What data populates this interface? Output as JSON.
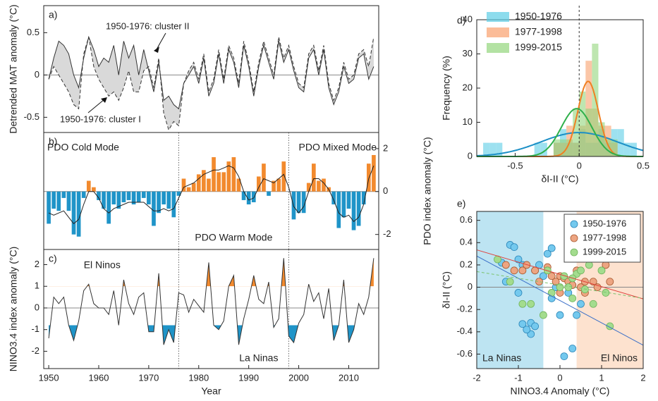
{
  "chart_data": [
    {
      "type": "line",
      "panel_label": "a)",
      "ylabel": "Detrended MAT anomaly (°C)",
      "annotations": [
        "1950-1976: cluster II",
        "1950-1976: cluster I"
      ],
      "x": [
        1950,
        1951,
        1952,
        1953,
        1954,
        1955,
        1956,
        1957,
        1958,
        1959,
        1960,
        1961,
        1962,
        1963,
        1964,
        1965,
        1966,
        1967,
        1968,
        1969,
        1970,
        1971,
        1972,
        1973,
        1974,
        1975,
        1976,
        1977,
        1978,
        1979,
        1980,
        1981,
        1982,
        1983,
        1984,
        1985,
        1986,
        1987,
        1988,
        1989,
        1990,
        1991,
        1992,
        1993,
        1994,
        1995,
        1996,
        1997,
        1998,
        1999,
        2000,
        2001,
        2002,
        2003,
        2004,
        2005,
        2006,
        2007,
        2008,
        2009,
        2010,
        2011,
        2012,
        2013,
        2014,
        2015
      ],
      "series": [
        {
          "color": "#333333",
          "dash": false,
          "values": [
            -0.05,
            0.2,
            0.4,
            0.35,
            0.25,
            0.0,
            -0.15,
            0.2,
            0.45,
            0.3,
            0.1,
            0.2,
            0.15,
            0.35,
            0.0,
            0.4,
            0.2,
            0.35,
            0.0,
            0.3,
            0.05,
            -0.2,
            0.15,
            -0.3,
            -0.25,
            -0.35,
            -0.4,
            -0.1,
            0.0,
            0.1,
            -0.1,
            0.2,
            -0.25,
            -0.1,
            0.25,
            -0.1,
            0.3,
            0.15,
            -0.15,
            0.35,
            0.1,
            -0.25,
            0.1,
            0.35,
            0.15,
            -0.05,
            0.4,
            0.15,
            0.3,
            0.05,
            -0.15,
            -0.2,
            0.2,
            0.3,
            0.0,
            0.3,
            -0.15,
            -0.35,
            -0.2,
            0.1,
            -0.1,
            -0.05,
            0.2,
            0.25,
            -0.05,
            0.1
          ]
        },
        {
          "color": "#333333",
          "dash": true,
          "values": [
            -0.05,
            0.1,
            0.0,
            -0.1,
            -0.2,
            -0.35,
            -0.4,
            0.25,
            0.45,
            0.1,
            -0.05,
            -0.15,
            -0.25,
            -0.2,
            -0.3,
            -0.15,
            0.05,
            -0.2,
            -0.2,
            0.05,
            0.1,
            -0.15,
            0.2,
            -0.45,
            -0.65,
            -0.55,
            -0.6,
            -0.1,
            0.05,
            0.15,
            -0.05,
            0.25,
            -0.2,
            -0.05,
            0.3,
            -0.05,
            0.35,
            0.2,
            -0.1,
            0.4,
            0.15,
            -0.2,
            0.15,
            0.4,
            0.2,
            0.0,
            0.45,
            0.2,
            0.35,
            0.1,
            -0.1,
            -0.15,
            0.25,
            0.35,
            0.05,
            0.35,
            -0.1,
            -0.3,
            -0.15,
            0.15,
            -0.05,
            0.0,
            0.25,
            0.3,
            0.1,
            0.45
          ]
        }
      ],
      "shade_between": "#d9d9d9",
      "xlim": [
        1949,
        2016
      ],
      "ylim": [
        -0.68,
        0.82
      ],
      "yticks": [
        -0.5,
        0,
        0.5
      ]
    },
    {
      "type": "bar",
      "panel_label": "b)",
      "ylabel": "PDO index anomaly (°C)",
      "y_axis_side": "right",
      "annotations": [
        {
          "text": "PDO Cold Mode",
          "color": "#1f94c8"
        },
        {
          "text": "PDO Mixed Mode",
          "color": "#2aa33c"
        },
        {
          "text": "PDO Warm Mode",
          "color": "#f28a2e"
        }
      ],
      "x": [
        1950,
        1951,
        1952,
        1953,
        1954,
        1955,
        1956,
        1957,
        1958,
        1959,
        1960,
        1961,
        1962,
        1963,
        1964,
        1965,
        1966,
        1967,
        1968,
        1969,
        1970,
        1971,
        1972,
        1973,
        1974,
        1975,
        1976,
        1977,
        1978,
        1979,
        1980,
        1981,
        1982,
        1983,
        1984,
        1985,
        1986,
        1987,
        1988,
        1989,
        1990,
        1991,
        1992,
        1993,
        1994,
        1995,
        1996,
        1997,
        1998,
        1999,
        2000,
        2001,
        2002,
        2003,
        2004,
        2005,
        2006,
        2007,
        2008,
        2009,
        2010,
        2011,
        2012,
        2013,
        2014,
        2015
      ],
      "values": [
        -1.5,
        -0.8,
        -0.9,
        -0.3,
        -0.9,
        -2.0,
        -2.1,
        -0.3,
        0.5,
        0.2,
        -0.4,
        -0.8,
        -1.5,
        -0.6,
        -0.8,
        -0.5,
        -0.4,
        -0.6,
        -0.5,
        -0.3,
        -0.6,
        -1.6,
        -1.0,
        -0.6,
        -0.8,
        -1.2,
        -0.2,
        0.6,
        0.2,
        0.4,
        0.8,
        1.0,
        0.6,
        1.6,
        0.9,
        0.9,
        1.4,
        1.6,
        0.6,
        -0.4,
        -0.6,
        -0.5,
        0.7,
        1.3,
        -0.2,
        0.5,
        0.6,
        1.4,
        0.0,
        -1.3,
        -1.0,
        -1.0,
        0.4,
        1.3,
        0.5,
        0.6,
        0.2,
        -0.6,
        -1.7,
        -1.2,
        -0.8,
        -1.8,
        -1.6,
        -0.6,
        1.3,
        1.7
      ],
      "smooth_values": [
        -1.0,
        -1.1,
        -1.0,
        -0.9,
        -1.2,
        -1.5,
        -1.3,
        -0.6,
        0.0,
        0.0,
        -0.3,
        -0.8,
        -1.0,
        -0.8,
        -0.7,
        -0.6,
        -0.5,
        -0.5,
        -0.5,
        -0.5,
        -0.7,
        -0.9,
        -0.9,
        -0.8,
        -0.9,
        -0.8,
        -0.3,
        0.2,
        0.3,
        0.4,
        0.6,
        0.8,
        0.9,
        1.0,
        1.0,
        1.1,
        1.2,
        1.1,
        0.7,
        0.0,
        -0.4,
        -0.3,
        0.2,
        0.6,
        0.5,
        0.4,
        0.6,
        0.8,
        0.2,
        -0.7,
        -1.0,
        -0.7,
        0.0,
        0.6,
        0.6,
        0.4,
        0.1,
        -0.4,
        -1.0,
        -1.2,
        -1.1,
        -1.4,
        -1.2,
        -0.6,
        0.6,
        1.2
      ],
      "color_positive": "#f28a2e",
      "color_negative": "#1f94c8",
      "smooth_color": "#222222",
      "regime_shifts": [
        1976,
        1998
      ],
      "xlim": [
        1949,
        2016
      ],
      "ylim": [
        -2.7,
        2.75
      ],
      "yticks": [
        -2,
        0,
        2
      ]
    },
    {
      "type": "line",
      "panel_label": "c)",
      "ylabel": "NINO3.4 index anomaly (°C)",
      "xlabel": "Year",
      "annotations": [
        {
          "text": "El Ninos",
          "color": "#f28a2e"
        },
        {
          "text": "La Ninas",
          "color": "#1f94c8"
        }
      ],
      "x": [
        1950,
        1951,
        1952,
        1953,
        1954,
        1955,
        1956,
        1957,
        1958,
        1959,
        1960,
        1961,
        1962,
        1963,
        1964,
        1965,
        1966,
        1967,
        1968,
        1969,
        1970,
        1971,
        1972,
        1973,
        1974,
        1975,
        1976,
        1977,
        1978,
        1979,
        1980,
        1981,
        1982,
        1983,
        1984,
        1985,
        1986,
        1987,
        1988,
        1989,
        1990,
        1991,
        1992,
        1993,
        1994,
        1995,
        1996,
        1997,
        1998,
        1999,
        2000,
        2001,
        2002,
        2003,
        2004,
        2005,
        2006,
        2007,
        2008,
        2009,
        2010,
        2011,
        2012,
        2013,
        2014,
        2015
      ],
      "series": [
        {
          "color": "#333333",
          "dash": false,
          "values": [
            -1.4,
            0.5,
            0.2,
            0.5,
            -0.8,
            -1.5,
            -0.6,
            0.8,
            1.1,
            0.2,
            0.0,
            0.0,
            -0.3,
            0.8,
            -0.8,
            1.3,
            0.2,
            -0.3,
            0.5,
            0.7,
            -1.1,
            -1.1,
            1.6,
            -1.7,
            -1.0,
            -1.6,
            0.7,
            0.6,
            -0.2,
            0.4,
            0.1,
            -0.2,
            2.1,
            -0.8,
            -1.0,
            -0.6,
            1.0,
            1.5,
            -1.7,
            -0.5,
            0.4,
            1.5,
            0.4,
            0.2,
            1.2,
            -0.9,
            -0.5,
            2.3,
            -1.3,
            -1.6,
            -0.7,
            -0.3,
            1.1,
            0.3,
            0.7,
            -0.5,
            0.9,
            -1.5,
            -0.8,
            1.3,
            -1.6,
            -1.0,
            0.2,
            -0.3,
            0.5,
            2.3
          ]
        }
      ],
      "highlight": [
        {
          "above": 1,
          "color": "#f28a2e"
        },
        {
          "below": -0.8,
          "color": "#1f94c8"
        }
      ],
      "regime_shifts": [
        1976,
        1998
      ],
      "xlim": [
        1949,
        2016
      ],
      "xticks": [
        1950,
        1960,
        1970,
        1980,
        1990,
        2000,
        2010
      ],
      "ylim": [
        -2.8,
        2.7
      ],
      "yticks": [
        -2,
        -1,
        0,
        1,
        2
      ]
    },
    {
      "type": "histogram",
      "panel_label": "d)",
      "ylabel": "Frequency (%)",
      "xlabel": "δI-II (°C)",
      "legend": "upper left",
      "bins": [
        -0.8,
        -0.75,
        -0.7,
        -0.65,
        -0.6,
        -0.55,
        -0.5,
        -0.45,
        -0.4,
        -0.35,
        -0.3,
        -0.25,
        -0.2,
        -0.15,
        -0.1,
        -0.05,
        0,
        0.05,
        0.1,
        0.15,
        0.2,
        0.25,
        0.3,
        0.35,
        0.4,
        0.45,
        0.5
      ],
      "series": [
        {
          "name": "1950-1976",
          "color": "#5ccde6",
          "line_color": "#1b8fc6",
          "values": [
            0,
            4,
            4,
            4,
            0,
            0,
            0,
            0,
            0,
            4,
            4,
            0,
            4,
            8,
            4,
            4,
            8,
            4,
            4,
            8,
            4,
            8,
            8,
            4,
            4,
            0
          ],
          "fit": {
            "mean": 0,
            "sd": 0.3,
            "peak": 7
          }
        },
        {
          "name": "1977-1998",
          "color": "#f9a06c",
          "line_color": "#f07f22",
          "values": [
            0,
            0,
            0,
            0,
            0,
            0,
            0,
            0,
            0,
            0,
            0,
            0,
            4,
            4,
            9,
            4,
            9,
            28,
            14,
            9,
            9,
            4,
            0,
            0,
            0,
            0
          ],
          "fit": {
            "mean": 0.07,
            "sd": 0.08,
            "peak": 22
          }
        },
        {
          "name": "1999-2015",
          "color": "#93d67c",
          "line_color": "#2fb04a",
          "values": [
            0,
            0,
            0,
            0,
            0,
            0,
            0,
            0,
            0,
            0,
            0,
            0,
            5,
            5,
            5,
            14,
            19,
            14,
            33,
            10,
            5,
            5,
            0,
            0,
            0,
            0
          ],
          "fit": {
            "mean": -0.02,
            "sd": 0.12,
            "peak": 14
          }
        }
      ],
      "xlim": [
        -0.8,
        0.5
      ],
      "xticks": [
        -0.5,
        0,
        0.5
      ],
      "ylim": [
        0,
        40
      ],
      "yticks": [
        0,
        10,
        20,
        30,
        40
      ]
    },
    {
      "type": "scatter",
      "panel_label": "e)",
      "ylabel": "δI-II (°C)",
      "xlabel": "NINO3.4 Anomaly (°C)",
      "legend": "upper right",
      "spans": [
        {
          "label": "La Ninas",
          "range": [
            -2,
            -0.4
          ],
          "color": "#bde4f2",
          "text_color": "#1f94c8"
        },
        {
          "label": "El Ninos",
          "range": [
            0.4,
            2
          ],
          "color": "#fde2cf",
          "text_color": "#f28a2e"
        }
      ],
      "series": [
        {
          "name": "1950-1976",
          "color": "#74c9ee",
          "edge": "#2a85b8",
          "line_color": "#3a6fc8",
          "dash": false,
          "x": [
            -1.2,
            -1.1,
            -1.4,
            -1.3,
            -1.0,
            -0.9,
            -0.6,
            -0.5,
            -0.4,
            -0.3,
            -0.2,
            -1.0,
            -0.7,
            -0.6,
            -0.7,
            -0.8,
            -0.9,
            -0.2,
            0.0,
            -0.1,
            0.2,
            0.3,
            0.4,
            0.5,
            0.1,
            0.3
          ],
          "values": [
            0.38,
            0.36,
            0.22,
            0.05,
            0.25,
            0.2,
            0.15,
            0.2,
            0.1,
            0.3,
            0.35,
            -0.05,
            -0.32,
            -0.35,
            -0.42,
            -0.38,
            -0.33,
            -0.1,
            -0.25,
            0.0,
            -0.05,
            -0.55,
            -0.25,
            -0.15,
            -0.62,
            0.02
          ],
          "fit": {
            "slope": -0.2,
            "intercept": -0.12
          }
        },
        {
          "name": "1977-1998",
          "color": "#eda582",
          "edge": "#a8582e",
          "line_color": "#e0403a",
          "dash": false,
          "x": [
            -1.3,
            -1.1,
            -0.9,
            -0.8,
            -0.6,
            -0.3,
            -0.5,
            -0.1,
            0.0,
            0.1,
            0.2,
            0.3,
            0.5,
            0.6,
            0.8,
            0.9,
            1.1,
            0.4,
            0.0,
            0.6,
            -0.2,
            1.2
          ],
          "values": [
            0.2,
            0.15,
            0.15,
            0.2,
            0.15,
            0.18,
            0.05,
            0.05,
            0.1,
            0.08,
            0.05,
            0.02,
            0.0,
            0.05,
            0.05,
            0.0,
            0.2,
            0.15,
            -0.05,
            -0.05,
            0.1,
            0.05
          ],
          "fit": {
            "slope": -0.11,
            "intercept": 0.115
          }
        },
        {
          "name": "1999-2015",
          "color": "#a3dc8e",
          "edge": "#6fb35a",
          "line_color": "#7cc36e",
          "dash": true,
          "x": [
            -1.5,
            -1.2,
            -0.9,
            -0.7,
            -0.4,
            -0.2,
            0.0,
            0.1,
            0.2,
            0.3,
            0.4,
            0.5,
            0.7,
            0.8,
            1.0,
            1.2,
            1.1,
            0.3,
            -0.3,
            0.6
          ],
          "values": [
            0.25,
            0.05,
            -0.15,
            -0.15,
            -0.25,
            -0.05,
            0.0,
            0.1,
            0.0,
            -0.1,
            0.12,
            0.15,
            0.2,
            -0.15,
            0.15,
            -0.35,
            -0.05,
            0.08,
            0.15,
            -0.02
          ],
          "fit": {
            "slope": -0.06,
            "intercept": 0.02
          }
        }
      ],
      "xlim": [
        -2,
        2
      ],
      "xticks": [
        -2,
        -1,
        0,
        1,
        2
      ],
      "ylim": [
        -0.73,
        0.68
      ],
      "yticks": [
        -0.6,
        -0.4,
        -0.2,
        0,
        0.2,
        0.4,
        0.6
      ]
    }
  ]
}
